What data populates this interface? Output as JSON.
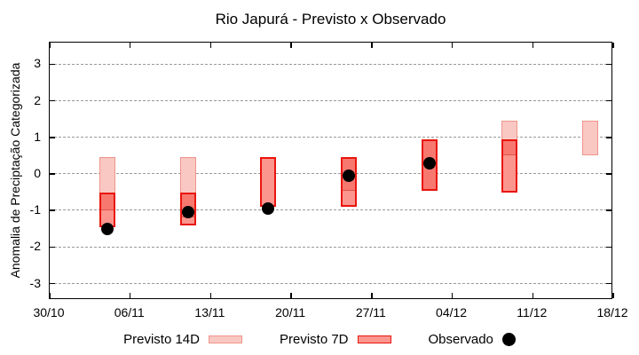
{
  "title": "Rio Japurá - Previsto x Observado",
  "chart_data": {
    "type": "bar",
    "title": "Rio Japurá - Previsto x Observado",
    "xlabel": "",
    "ylabel": "Anomalia de Preciptação Categorizada",
    "x_tick_labels": [
      "30/10",
      "06/11",
      "13/11",
      "20/11",
      "27/11",
      "04/12",
      "11/12",
      "18/12"
    ],
    "x_axis_span_days": 49,
    "y_ticks": [
      3,
      2,
      1,
      0,
      -1,
      -2,
      -3
    ],
    "ylim": [
      -3.5,
      3.6
    ],
    "grid": "horizontal-dashed",
    "legend_position": "bottom",
    "bars": [
      {
        "date": "04/11",
        "day_offset": 5,
        "previsto_14d": {
          "top": 0.45,
          "bottom": -1.0
        },
        "previsto_7d": {
          "top": -0.5,
          "bottom": -1.45
        },
        "observado": -1.5
      },
      {
        "date": "11/11",
        "day_offset": 12,
        "previsto_14d": {
          "top": 0.45,
          "bottom": -1.2
        },
        "previsto_7d": {
          "top": -0.5,
          "bottom": -1.4
        },
        "observado": -1.05
      },
      {
        "date": "18/11",
        "day_offset": 19,
        "previsto_14d": null,
        "previsto_7d": {
          "top": 0.45,
          "bottom": -0.9
        },
        "observado": -0.95
      },
      {
        "date": "25/11",
        "day_offset": 26,
        "previsto_14d": {
          "top": 0.45,
          "bottom": -0.45
        },
        "previsto_7d": {
          "top": 0.45,
          "bottom": -0.9
        },
        "observado": -0.05
      },
      {
        "date": "02/12",
        "day_offset": 33,
        "previsto_14d": {
          "top": 0.95,
          "bottom": -0.45
        },
        "previsto_7d": {
          "top": 0.95,
          "bottom": -0.45
        },
        "observado": 0.3
      },
      {
        "date": "09/12",
        "day_offset": 40,
        "previsto_14d": {
          "top": 1.45,
          "bottom": 0.5
        },
        "previsto_7d": {
          "top": 0.95,
          "bottom": -0.5
        },
        "observado": null
      },
      {
        "date": "16/12",
        "day_offset": 47,
        "previsto_14d": {
          "top": 1.45,
          "bottom": 0.5
        },
        "previsto_7d": null,
        "observado": null
      }
    ]
  },
  "legend": {
    "items": [
      {
        "label": "Previsto 14D",
        "swatch": "range14"
      },
      {
        "label": "Previsto 7D",
        "swatch": "range7"
      },
      {
        "label": "Observado",
        "swatch": "dot"
      }
    ]
  },
  "colors": {
    "previsto_14d_fill": "#f9c8c2",
    "previsto_14d_border": "#f0948b",
    "previsto_7d_fill": "#fa968e",
    "previsto_7d_border": "#e9150d",
    "overlap_fill": "#f7786e",
    "overlap_divider": "#e0544a",
    "observado": "#000000",
    "grid": "#999999",
    "axis": "#000000",
    "background": "#ffffff"
  }
}
